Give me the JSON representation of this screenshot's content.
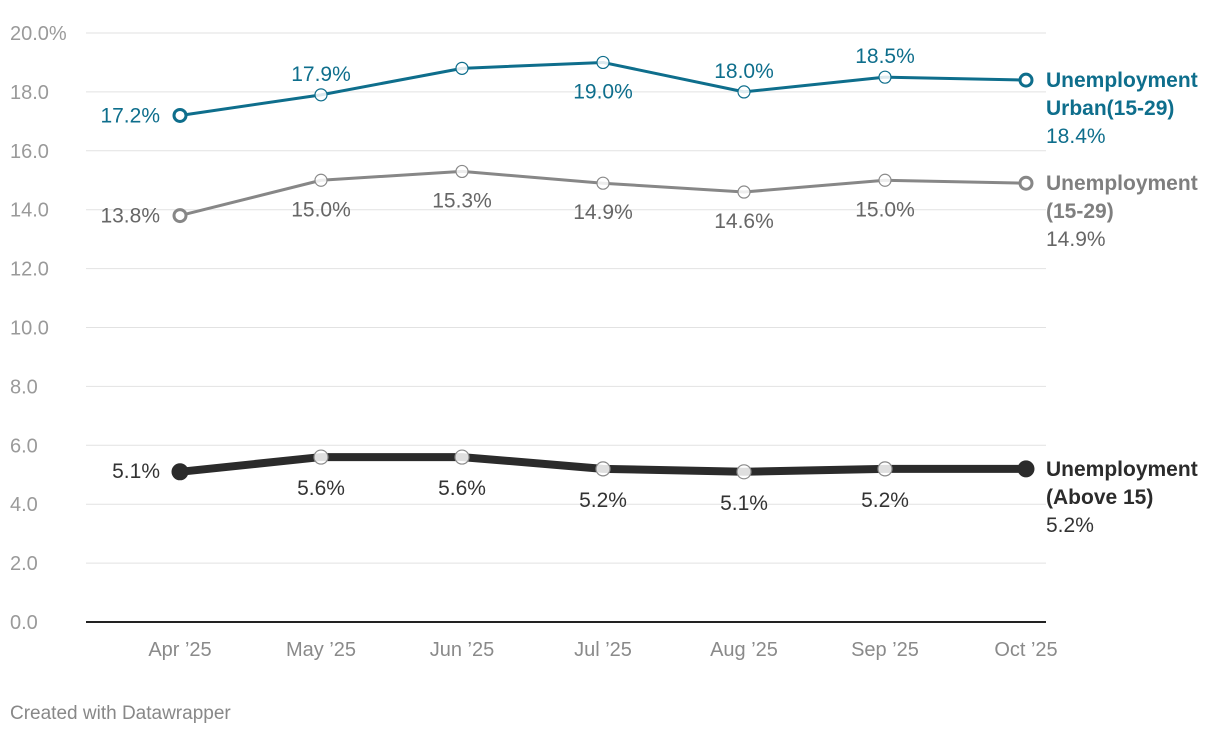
{
  "chart_data": {
    "type": "line",
    "categories": [
      "Apr ’25",
      "May ’25",
      "Jun ’25",
      "Jul ’25",
      "Aug ’25",
      "Sep ’25",
      "Oct ’25"
    ],
    "ylim": [
      0,
      20
    ],
    "yticks": [
      0,
      2,
      4,
      6,
      8,
      10,
      12,
      14,
      16,
      18,
      20
    ],
    "ytick_labels": [
      "0.0",
      "2.0",
      "4.0",
      "6.0",
      "8.0",
      "10.0",
      "12.0",
      "14.0",
      "16.0",
      "18.0",
      "20.0%"
    ],
    "grid": true,
    "series": [
      {
        "id": "urban",
        "name_lines": [
          "Unemployment",
          "Urban(15-29)"
        ],
        "end_label": "18.4%",
        "color": "#0e6e8c",
        "values": [
          17.2,
          17.9,
          18.8,
          19.0,
          18.0,
          18.5,
          18.4
        ],
        "labels": [
          "17.2%",
          "17.9%",
          "",
          "19.0%",
          "18.0%",
          "18.5%",
          ""
        ]
      },
      {
        "id": "youth",
        "name_lines": [
          "Unemployment",
          "(15-29)"
        ],
        "end_label": "14.9%",
        "color": "#878787",
        "values": [
          13.8,
          15.0,
          15.3,
          14.9,
          14.6,
          15.0,
          14.9
        ],
        "labels": [
          "13.8%",
          "15.0%",
          "15.3%",
          "14.9%",
          "14.6%",
          "15.0%",
          ""
        ]
      },
      {
        "id": "above15",
        "name_lines": [
          "Unemployment",
          "(Above 15)"
        ],
        "end_label": "5.2%",
        "color": "#2b2b2b",
        "values": [
          5.1,
          5.6,
          5.6,
          5.2,
          5.1,
          5.2,
          5.2
        ],
        "labels": [
          "5.1%",
          "5.6%",
          "5.6%",
          "5.2%",
          "5.1%",
          "5.2%",
          ""
        ]
      }
    ]
  },
  "footer": "Created with Datawrapper"
}
